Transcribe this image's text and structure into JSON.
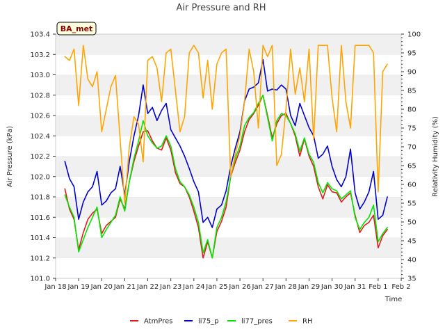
{
  "chart_data": {
    "type": "line",
    "title": "Air Pressure and RH",
    "badge": "BA_met",
    "xlabel": "Time",
    "ylabel_left": "Air Pressure (kPa)",
    "ylabel_right": "Relativity Humidity (%)",
    "ylim_left": [
      101.0,
      103.4
    ],
    "ylim_right": [
      35,
      100
    ],
    "xlim": [
      0,
      15
    ],
    "x_tick_labels": [
      "Jan 18",
      "Jan 19",
      "Jan 20",
      "Jan 21",
      "Jan 22",
      "Jan 23",
      "Jan 24",
      "Jan 25",
      "Jan 26",
      "Jan 27",
      "Jan 28",
      "Jan 29",
      "Jan 30",
      "Jan 31",
      "Feb 1",
      "Feb 2"
    ],
    "y_left_ticks": [
      "101.0",
      "101.2",
      "101.4",
      "101.6",
      "101.8",
      "102.0",
      "102.2",
      "102.4",
      "102.6",
      "102.8",
      "103.0",
      "103.2",
      "103.4"
    ],
    "y_right_ticks": [
      "35",
      "40",
      "45",
      "50",
      "55",
      "60",
      "65",
      "70",
      "75",
      "80",
      "85",
      "90",
      "95",
      "100"
    ],
    "grid": "horizontal bands",
    "legend_position": "bottom",
    "x": [
      0.4,
      0.6,
      0.8,
      1.0,
      1.2,
      1.4,
      1.6,
      1.8,
      2.0,
      2.2,
      2.4,
      2.6,
      2.8,
      3.0,
      3.2,
      3.4,
      3.6,
      3.8,
      4.0,
      4.2,
      4.4,
      4.6,
      4.8,
      5.0,
      5.2,
      5.4,
      5.6,
      5.8,
      6.0,
      6.2,
      6.4,
      6.6,
      6.8,
      7.0,
      7.2,
      7.4,
      7.6,
      7.8,
      8.0,
      8.2,
      8.4,
      8.6,
      8.8,
      9.0,
      9.2,
      9.4,
      9.6,
      9.8,
      10.0,
      10.2,
      10.4,
      10.6,
      10.8,
      11.0,
      11.2,
      11.4,
      11.6,
      11.8,
      12.0,
      12.2,
      12.4,
      12.6,
      12.8,
      13.0,
      13.2,
      13.4,
      13.6,
      13.8,
      14.0,
      14.2,
      14.4
    ],
    "series": [
      {
        "name": "AtmPres",
        "color": "#e31a1c",
        "axis": "left",
        "values": [
          101.88,
          101.68,
          101.58,
          101.28,
          101.45,
          101.58,
          101.64,
          101.68,
          101.44,
          101.52,
          101.56,
          101.6,
          101.78,
          101.68,
          101.95,
          102.15,
          102.3,
          102.44,
          102.45,
          102.35,
          102.28,
          102.26,
          102.38,
          102.26,
          102.04,
          101.93,
          101.9,
          101.8,
          101.66,
          101.5,
          101.2,
          101.36,
          101.2,
          101.46,
          101.56,
          101.7,
          102.0,
          102.14,
          102.26,
          102.44,
          102.56,
          102.62,
          102.7,
          102.8,
          102.6,
          102.38,
          102.52,
          102.6,
          102.62,
          102.52,
          102.4,
          102.2,
          102.37,
          102.2,
          102.1,
          101.9,
          101.78,
          101.92,
          101.85,
          101.84,
          101.75,
          101.8,
          101.84,
          101.62,
          101.45,
          101.52,
          101.55,
          101.62,
          101.3,
          101.42,
          101.48
        ]
      },
      {
        "name": "li75_p",
        "color": "#0000cc",
        "axis": "left",
        "values": [
          102.15,
          101.98,
          101.9,
          101.58,
          101.75,
          101.85,
          101.9,
          102.05,
          101.72,
          101.76,
          101.84,
          101.88,
          102.1,
          101.82,
          102.15,
          102.4,
          102.6,
          102.9,
          102.62,
          102.68,
          102.55,
          102.65,
          102.72,
          102.46,
          102.38,
          102.3,
          102.2,
          102.08,
          101.95,
          101.85,
          101.55,
          101.6,
          101.5,
          101.68,
          101.72,
          101.86,
          102.1,
          102.28,
          102.44,
          102.74,
          102.86,
          102.88,
          102.92,
          103.15,
          102.84,
          102.86,
          102.85,
          102.9,
          102.86,
          102.6,
          102.5,
          102.72,
          102.6,
          102.48,
          102.4,
          102.18,
          102.22,
          102.3,
          102.1,
          101.97,
          101.9,
          102.0,
          102.27,
          101.84,
          101.68,
          101.75,
          101.85,
          102.05,
          101.58,
          101.62,
          101.8
        ]
      },
      {
        "name": "li77_pres",
        "color": "#00e600",
        "axis": "left",
        "values": [
          101.82,
          101.7,
          101.6,
          101.26,
          101.38,
          101.5,
          101.6,
          101.7,
          101.4,
          101.48,
          101.55,
          101.62,
          101.8,
          101.66,
          101.95,
          102.18,
          102.35,
          102.55,
          102.4,
          102.33,
          102.28,
          102.3,
          102.4,
          102.3,
          102.08,
          101.95,
          101.9,
          101.82,
          101.7,
          101.55,
          101.25,
          101.38,
          101.2,
          101.5,
          101.6,
          101.75,
          102.0,
          102.18,
          102.3,
          102.5,
          102.58,
          102.63,
          102.72,
          102.8,
          102.58,
          102.35,
          102.55,
          102.62,
          102.6,
          102.52,
          102.42,
          102.25,
          102.38,
          102.22,
          102.14,
          101.94,
          101.84,
          101.94,
          101.88,
          101.86,
          101.78,
          101.82,
          101.86,
          101.6,
          101.48,
          101.55,
          101.6,
          101.72,
          101.36,
          101.44,
          101.5
        ]
      },
      {
        "name": "RH",
        "color": "#ffa500",
        "axis": "right",
        "values": [
          94,
          93,
          96,
          81,
          97,
          88,
          86,
          90,
          74,
          80,
          86,
          89,
          72,
          55,
          70,
          78,
          76,
          66,
          93,
          94,
          91,
          82,
          95,
          96,
          85,
          74,
          78,
          95,
          97,
          95,
          83,
          93,
          80,
          92,
          95,
          96,
          62,
          68,
          73,
          82,
          96,
          90,
          75,
          97,
          94,
          97,
          65,
          68,
          80,
          96,
          84,
          91,
          82,
          96,
          72,
          97,
          97,
          97,
          83,
          74,
          97,
          82,
          75,
          97,
          97,
          97,
          97,
          95,
          58,
          90,
          92
        ]
      }
    ]
  }
}
